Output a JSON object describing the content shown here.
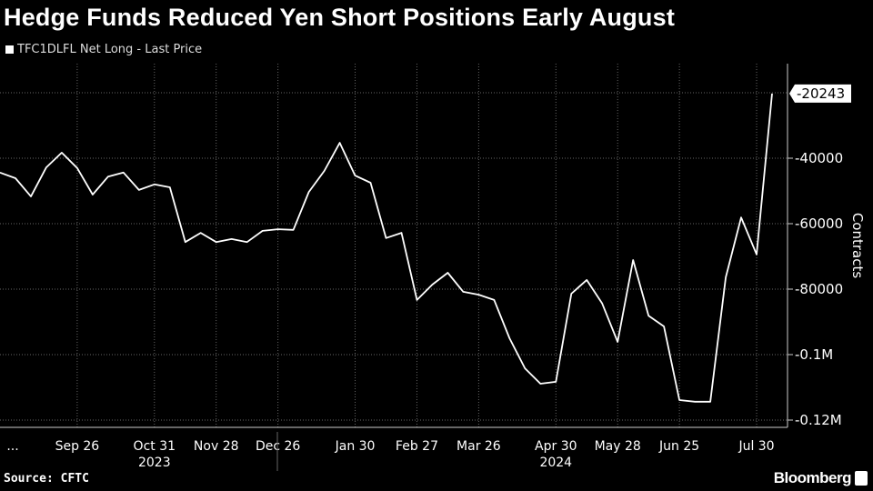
{
  "title": "Hedge Funds Reduced Yen Short Positions Early August",
  "source": "Source: CFTC",
  "brand": "Bloomberg",
  "colors": {
    "background": "#000000",
    "line": "#ffffff",
    "grid": "#555555"
  },
  "chart_data": {
    "type": "line",
    "legend": [
      "TFC1DLFL Net Long - Last Price"
    ],
    "legend_placement": "top-left",
    "ylabel": "Contracts",
    "y_axis_side": "right",
    "ylim": [
      -125000,
      -10000
    ],
    "yticks": [
      -40000,
      -60000,
      -80000,
      -100000,
      -120000
    ],
    "ytick_labels": [
      "-40000",
      "-60000",
      "-80000",
      "-0.1M",
      "-0.12M"
    ],
    "grid": true,
    "last_value_label": "-20243",
    "xtick_labels": [
      {
        "date": "2023-08-22",
        "label": "..."
      },
      {
        "date": "2023-09-26",
        "label": "Sep 26"
      },
      {
        "date": "2023-10-31",
        "label": "Oct 31"
      },
      {
        "date": "2023-11-28",
        "label": "Nov 28"
      },
      {
        "date": "2023-12-26",
        "label": "Dec 26"
      },
      {
        "date": "2024-01-30",
        "label": "Jan 30"
      },
      {
        "date": "2024-02-27",
        "label": "Feb 27"
      },
      {
        "date": "2024-03-26",
        "label": "Mar 26"
      },
      {
        "date": "2024-04-30",
        "label": "Apr 30"
      },
      {
        "date": "2024-05-28",
        "label": "May 28"
      },
      {
        "date": "2024-06-25",
        "label": "Jun 25"
      },
      {
        "date": "2024-07-30",
        "label": "Jul 30"
      }
    ],
    "year_labels": [
      {
        "date": "2023-10-31",
        "label": "2023"
      },
      {
        "date": "2024-04-30",
        "label": "2024"
      }
    ],
    "series": [
      {
        "name": "TFC1DLFL Net Long - Last Price",
        "x": [
          "2023-08-22",
          "2023-08-29",
          "2023-09-05",
          "2023-09-12",
          "2023-09-19",
          "2023-09-26",
          "2023-10-03",
          "2023-10-10",
          "2023-10-17",
          "2023-10-24",
          "2023-10-31",
          "2023-11-07",
          "2023-11-14",
          "2023-11-21",
          "2023-11-28",
          "2023-12-05",
          "2023-12-12",
          "2023-12-19",
          "2023-12-26",
          "2024-01-02",
          "2024-01-09",
          "2024-01-16",
          "2024-01-23",
          "2024-01-30",
          "2024-02-06",
          "2024-02-13",
          "2024-02-20",
          "2024-02-27",
          "2024-03-05",
          "2024-03-12",
          "2024-03-19",
          "2024-03-26",
          "2024-04-02",
          "2024-04-09",
          "2024-04-16",
          "2024-04-23",
          "2024-04-30",
          "2024-05-07",
          "2024-05-14",
          "2024-05-21",
          "2024-05-28",
          "2024-06-04",
          "2024-06-11",
          "2024-06-18",
          "2024-06-25",
          "2024-07-02",
          "2024-07-09",
          "2024-07-16",
          "2024-07-23",
          "2024-07-30",
          "2024-08-06"
        ],
        "y": [
          -44400,
          -46100,
          -51700,
          -42800,
          -38300,
          -43000,
          -51100,
          -45600,
          -44400,
          -49700,
          -48000,
          -48900,
          -65600,
          -62800,
          -65600,
          -64700,
          -65600,
          -62200,
          -61700,
          -61900,
          -50300,
          -43900,
          -35300,
          -45300,
          -47500,
          -64400,
          -62800,
          -83300,
          -78600,
          -75000,
          -80800,
          -81700,
          -83300,
          -95000,
          -104200,
          -108900,
          -108300,
          -81400,
          -77200,
          -84400,
          -96100,
          -71100,
          -88100,
          -91400,
          -113900,
          -114400,
          -114400,
          -76400,
          -58100,
          -69400,
          -20243
        ]
      }
    ]
  }
}
